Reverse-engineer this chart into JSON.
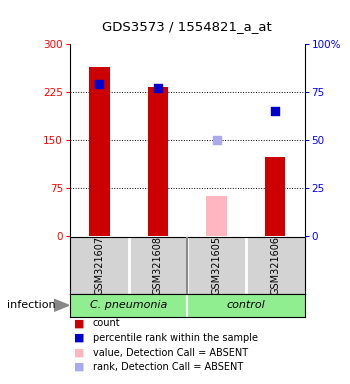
{
  "title": "GDS3573 / 1554821_a_at",
  "samples": [
    "GSM321607",
    "GSM321608",
    "GSM321605",
    "GSM321606"
  ],
  "count_values": [
    265,
    233,
    null,
    123
  ],
  "count_absent": [
    null,
    null,
    63,
    null
  ],
  "percentile_values": [
    79,
    77,
    null,
    65
  ],
  "percentile_absent": [
    null,
    null,
    50,
    null
  ],
  "ylim_left": [
    0,
    300
  ],
  "ylim_right": [
    0,
    100
  ],
  "yticks_left": [
    0,
    75,
    150,
    225,
    300
  ],
  "yticks_right": [
    0,
    25,
    50,
    75,
    100
  ],
  "bar_color_present": "#cc0000",
  "bar_color_absent": "#ffb6c1",
  "dot_color_present": "#0000cc",
  "dot_color_absent": "#aaaaee",
  "bar_width": 0.35,
  "group_label": "infection",
  "group_names": [
    "C. pneumonia",
    "control"
  ],
  "group_color": "#90ee90",
  "sample_box_color": "#d3d3d3",
  "legend_items": [
    [
      "#cc0000",
      "count"
    ],
    [
      "#0000cc",
      "percentile rank within the sample"
    ],
    [
      "#ffb6c1",
      "value, Detection Call = ABSENT"
    ],
    [
      "#aaaaee",
      "rank, Detection Call = ABSENT"
    ]
  ]
}
